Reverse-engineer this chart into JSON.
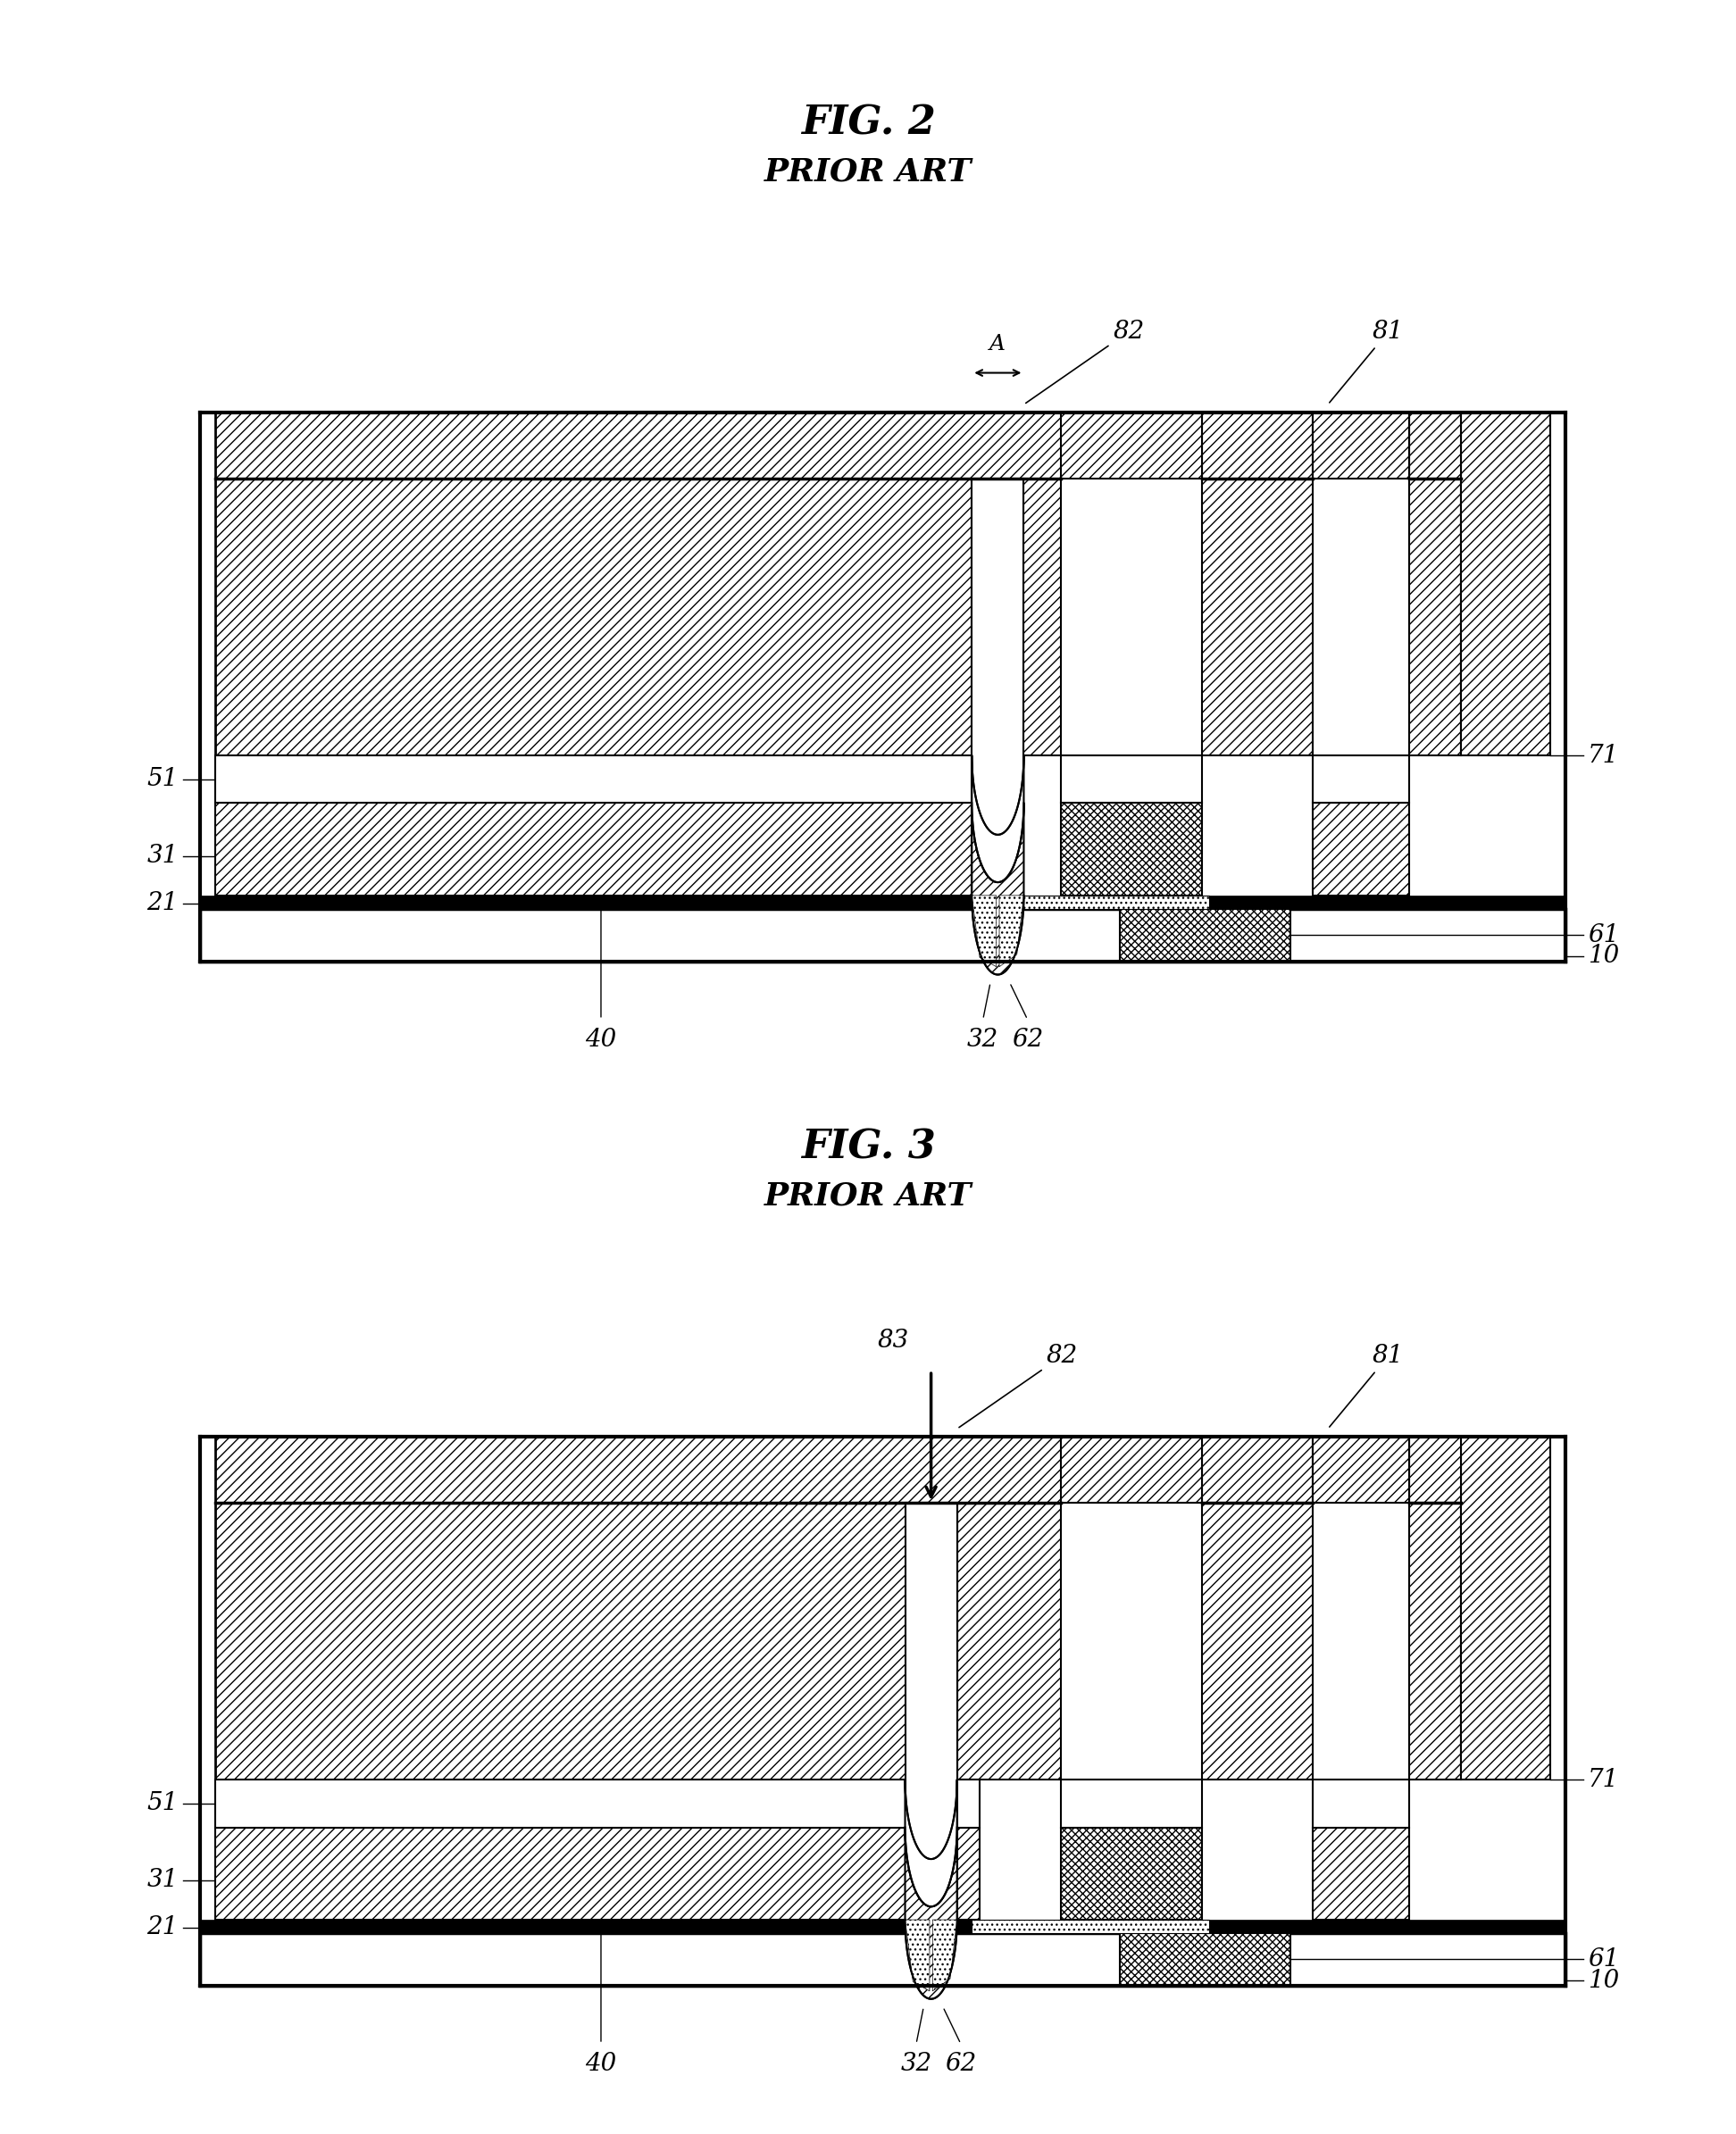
{
  "fig_title1": "FIG. 2",
  "fig_subtitle1": "PRIOR ART",
  "fig_title2": "FIG. 3",
  "fig_subtitle2": "PRIOR ART",
  "bg_color": "#ffffff",
  "title_fontsize": 32,
  "subtitle_fontsize": 26,
  "label_fontsize": 22
}
